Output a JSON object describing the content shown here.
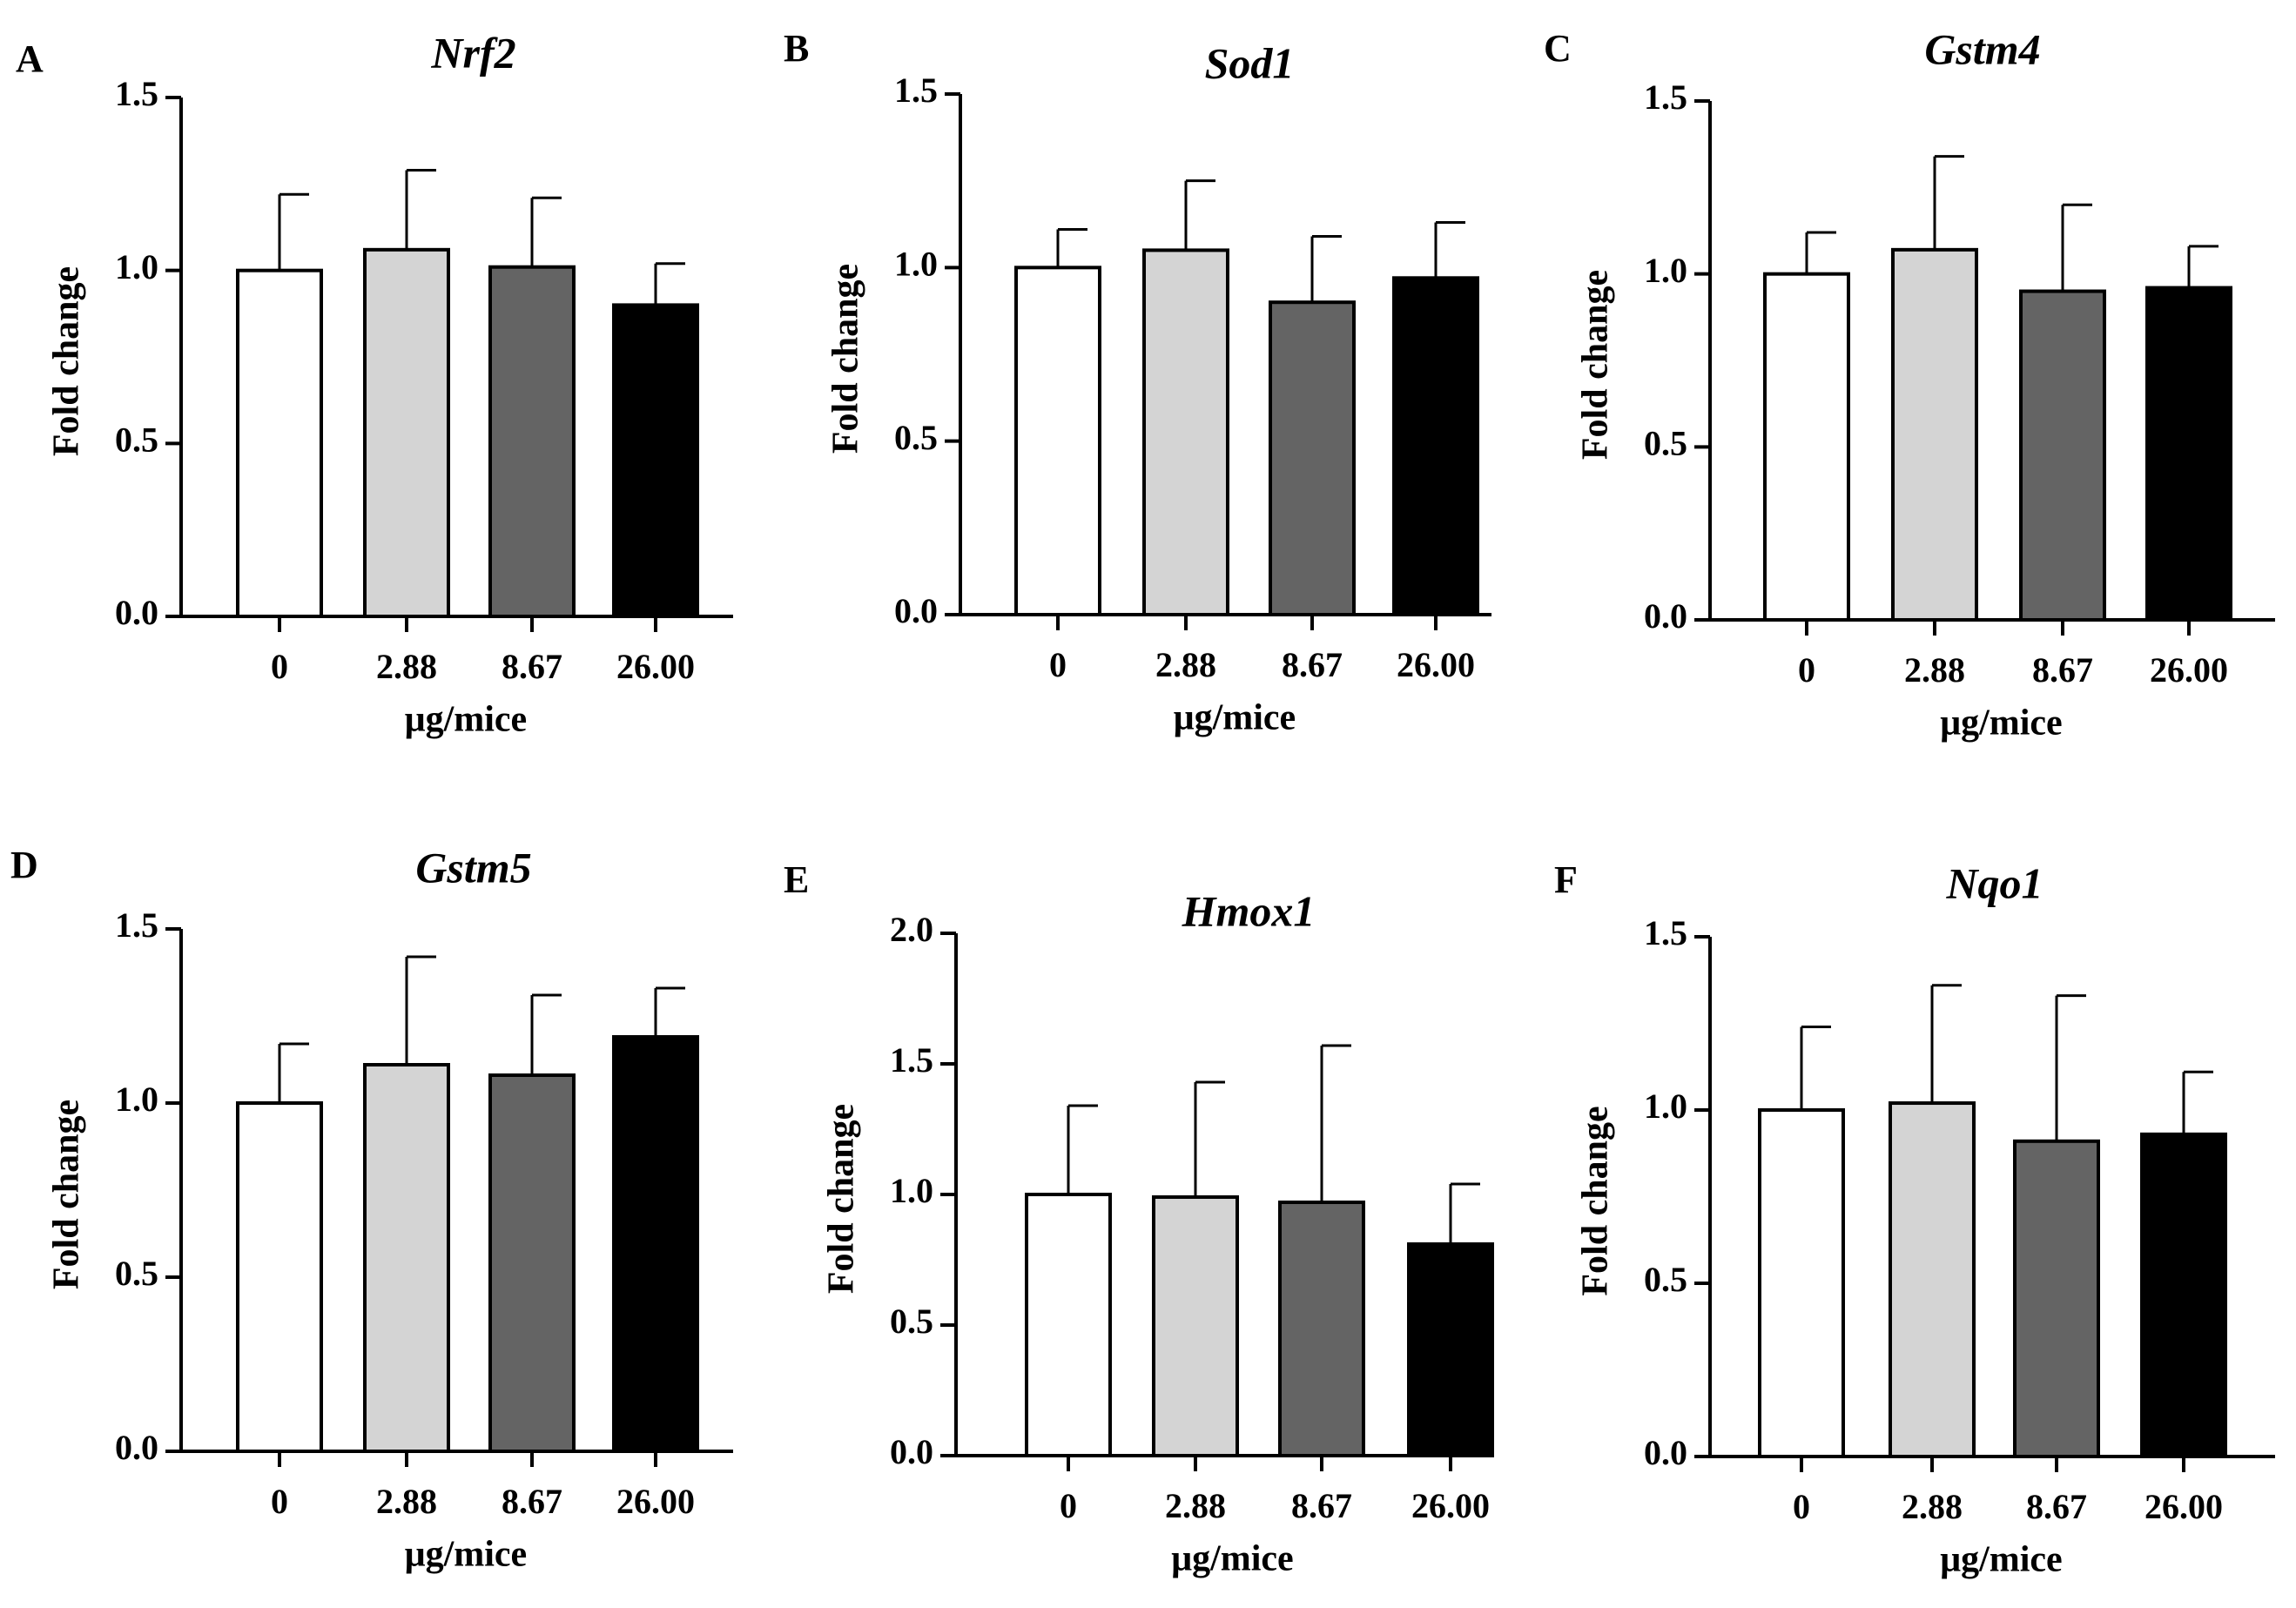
{
  "chart_data": [
    {
      "panel": "A",
      "title": "Nrf2",
      "type": "bar",
      "categories": [
        "0",
        "2.88",
        "8.67",
        "26.00"
      ],
      "values": [
        1.0,
        1.06,
        1.01,
        0.9
      ],
      "errors": [
        0.22,
        0.23,
        0.2,
        0.12
      ],
      "xlabel": "μg/mice",
      "ylabel": "Fold change",
      "ylim": [
        0,
        1.5
      ],
      "yticks": [
        "0.0",
        "0.5",
        "1.0",
        "1.5"
      ]
    },
    {
      "panel": "B",
      "title": "Sod1",
      "type": "bar",
      "categories": [
        "0",
        "2.88",
        "8.67",
        "26.00"
      ],
      "values": [
        1.0,
        1.05,
        0.9,
        0.97
      ],
      "errors": [
        0.11,
        0.2,
        0.19,
        0.16
      ],
      "xlabel": "μg/mice",
      "ylabel": "Fold change",
      "ylim": [
        0,
        1.5
      ],
      "yticks": [
        "0.0",
        "0.5",
        "1.0",
        "1.5"
      ]
    },
    {
      "panel": "C",
      "title": "Gstm4",
      "type": "bar",
      "categories": [
        "0",
        "2.88",
        "8.67",
        "26.00"
      ],
      "values": [
        1.0,
        1.07,
        0.95,
        0.96
      ],
      "errors": [
        0.12,
        0.27,
        0.25,
        0.12
      ],
      "xlabel": "μg/mice",
      "ylabel": "Fold change",
      "ylim": [
        0,
        1.5
      ],
      "yticks": [
        "0.0",
        "0.5",
        "1.0",
        "1.5"
      ]
    },
    {
      "panel": "D",
      "title": "Gstm5",
      "type": "bar",
      "categories": [
        "0",
        "2.88",
        "8.67",
        "26.00"
      ],
      "values": [
        1.0,
        1.11,
        1.08,
        1.19
      ],
      "errors": [
        0.17,
        0.31,
        0.23,
        0.14
      ],
      "xlabel": "μg/mice",
      "ylabel": "Fold change",
      "ylim": [
        0,
        1.5
      ],
      "yticks": [
        "0.0",
        "0.5",
        "1.0",
        "1.5"
      ]
    },
    {
      "panel": "E",
      "title": "Hmox1",
      "type": "bar",
      "categories": [
        "0",
        "2.88",
        "8.67",
        "26.00"
      ],
      "values": [
        1.0,
        0.99,
        0.97,
        0.81
      ],
      "errors": [
        0.34,
        0.44,
        0.6,
        0.23
      ],
      "xlabel": "μg/mice",
      "ylabel": "Fold change",
      "ylim": [
        0,
        2.0
      ],
      "yticks": [
        "0.0",
        "0.5",
        "1.0",
        "1.5",
        "2.0"
      ]
    },
    {
      "panel": "F",
      "title": "Nqo1",
      "type": "bar",
      "categories": [
        "0",
        "2.88",
        "8.67",
        "26.00"
      ],
      "values": [
        1.0,
        1.02,
        0.91,
        0.93
      ],
      "errors": [
        0.24,
        0.34,
        0.42,
        0.18
      ],
      "xlabel": "μg/mice",
      "ylabel": "Fold change",
      "ylim": [
        0,
        1.5
      ],
      "yticks": [
        "0.0",
        "0.5",
        "1.0",
        "1.5"
      ]
    }
  ],
  "colors": {
    "bar_fills": [
      "#ffffff",
      "#d4d4d4",
      "#646464",
      "#000000"
    ],
    "stroke": "#000000"
  }
}
